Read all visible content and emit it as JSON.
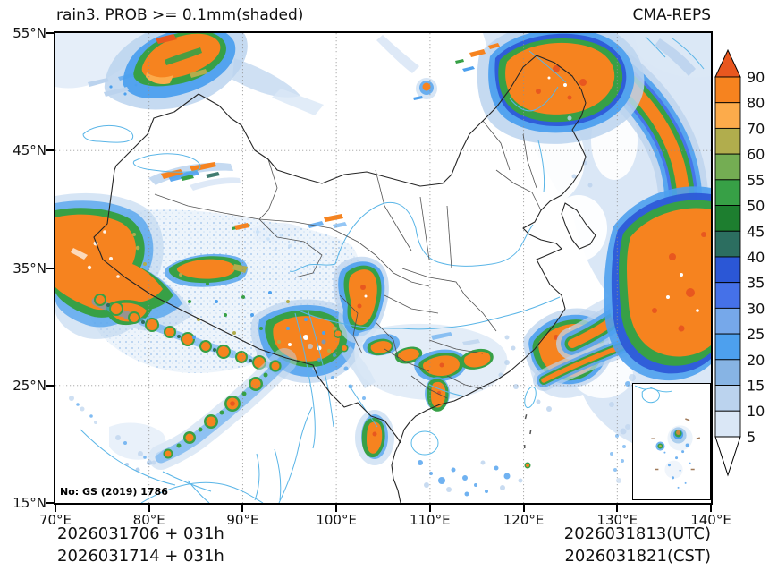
{
  "title": {
    "left": "rain3. PROB >= 0.1mm(shaded)",
    "right": "CMA-REPS"
  },
  "axis": {
    "x_ticks": [
      "70°E",
      "80°E",
      "90°E",
      "100°E",
      "110°E",
      "120°E",
      "130°E",
      "140°E"
    ],
    "y_ticks": [
      "55°N",
      "45°N",
      "35°N",
      "25°N",
      "15°N"
    ]
  },
  "colorbar": {
    "tick_labels_top_to_bottom": [
      "90",
      "80",
      "70",
      "60",
      "55",
      "50",
      "45",
      "40",
      "35",
      "30",
      "25",
      "20",
      "15",
      "10",
      "5"
    ],
    "segment_colors_top_to_bottom": [
      "#f6831f",
      "#fcab4b",
      "#b1ad4d",
      "#74ad53",
      "#37a046",
      "#1d7e2f",
      "#2c6e60",
      "#2b57d6",
      "#4571e8",
      "#76a8ea",
      "#4da0ee",
      "#87b4e4",
      "#bbd3ee",
      "#dae7f6"
    ],
    "over_arrow_color": "#e8571f",
    "under_arrow_color": "#ffffff"
  },
  "footer": {
    "init_utc": "2026031706 + 031h",
    "init_cst": "2026031714 + 031h",
    "valid_utc": "2026031813(UTC)",
    "valid_cst": "2026031821(CST)"
  },
  "license_note": "No: GS (2019) 1786",
  "chart_data": {
    "type": "heatmap",
    "title": "rain3. PROB >= 0.1mm(shaded)",
    "model": "CMA-REPS",
    "variable": "probability (%) of 3-hour rainfall >= 0.1 mm, shaded",
    "x_axis": {
      "label_suffix": "°E",
      "range": [
        70,
        140
      ],
      "tick_interval": 10
    },
    "y_axis": {
      "label_suffix": "°N",
      "range": [
        15,
        55
      ],
      "tick_interval": 10
    },
    "grid": "dotted 10-degree graticule",
    "legend_position": "right vertical colorbar with over/under arrows",
    "probability_levels_percent": [
      5,
      10,
      15,
      20,
      25,
      30,
      35,
      40,
      45,
      50,
      55,
      60,
      70,
      80,
      90
    ],
    "init_time": {
      "utc": "2026031706",
      "cst": "2026031714",
      "lead_hours": "031h"
    },
    "valid_time": {
      "utc": "2026031813",
      "cst": "2026031821"
    },
    "inset": "South China Sea islands inset at bottom right",
    "high_probability_regions_over_80_percent": [
      "Altai / northern Xinjiang (~75-82E, 50-55N)",
      "Tianshan ridge streaks (~80-88E, 42-44N)",
      "western Tibetan Plateau and Himalayan arc (~70-92E, 28-37N)",
      "eastern Tibetan Plateau (~92-98E, 29-32N)",
      "southern Gansu / northern Sichuan vertical cell (~102-104E, 30-34N)",
      "southwest convective line toward Bay of Bengal (~80-94E, 18-26N)",
      "south-central China cluster (~103-113E, 24-28N)",
      "Fujian-Zhejiang coast with two offshore bands (~115-127E, 23-30N)",
      "northeast China / Amur basin arc (~115-132E, 46-55N)",
      "Japan - Korea Strait broad system (~125-140E, 27-48N)"
    ]
  }
}
